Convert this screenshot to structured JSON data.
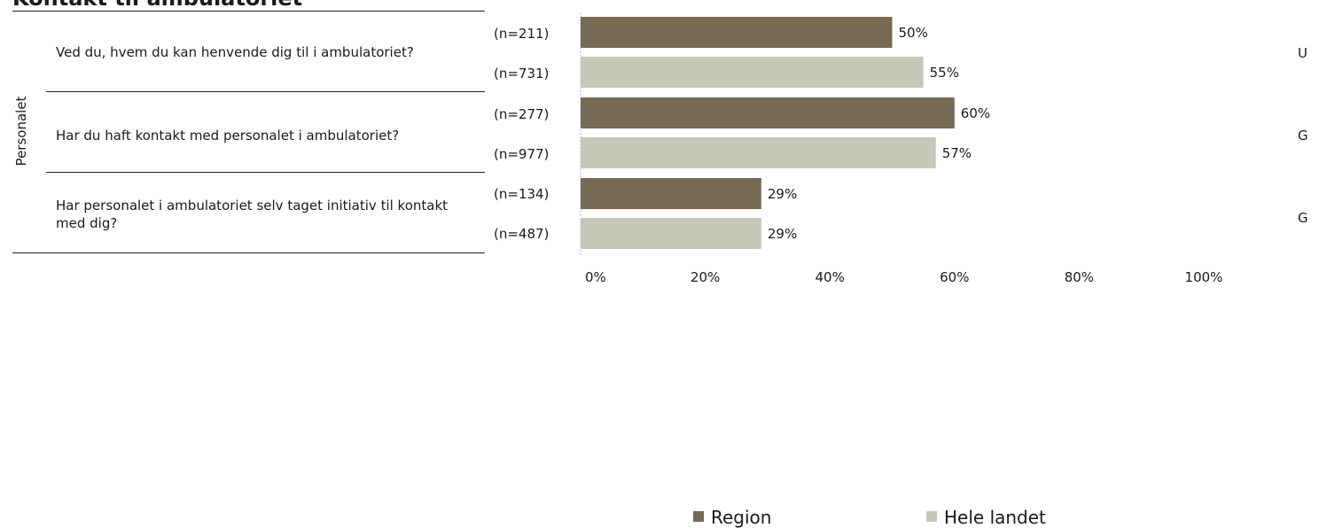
{
  "title": "Kontakt til ambulatoriet",
  "group_label": "Personalet",
  "questions": [
    {
      "text": "Ved du, hvem du kan henvende dig til i ambulatoriet?",
      "side": "U"
    },
    {
      "text": "Har du haft kontakt med personalet i ambulatoriet?",
      "side": "G"
    },
    {
      "text": "Har personalet i ambulatoriet selv taget initiativ til kontakt med dig?",
      "side": "G"
    }
  ],
  "colors": {
    "region": "#776a55",
    "hele_landet": "#c6c6b9"
  },
  "chart_data": {
    "type": "bar",
    "orientation": "horizontal",
    "categories": [
      "Ved du, hvem du kan henvende dig til i ambulatoriet?",
      "Har du haft kontakt med personalet i ambulatoriet?",
      "Har personalet i ambulatoriet selv taget initiativ til kontakt med dig?"
    ],
    "series": [
      {
        "name": "Region",
        "values": [
          50,
          60,
          29
        ],
        "labels": [
          "50%",
          "60%",
          "29%"
        ],
        "n": [
          "(n=211)",
          "(n=277)",
          "(n=134)"
        ]
      },
      {
        "name": "Hele landet",
        "values": [
          55,
          57,
          29
        ],
        "labels": [
          "55%",
          "57%",
          "29%"
        ],
        "n": [
          "(n=731)",
          "(n=977)",
          "(n=487)"
        ]
      }
    ],
    "xlim": [
      0,
      100
    ],
    "xticks": [
      "0%",
      "20%",
      "40%",
      "60%",
      "80%",
      "100%"
    ],
    "legend_position": "bottom"
  }
}
